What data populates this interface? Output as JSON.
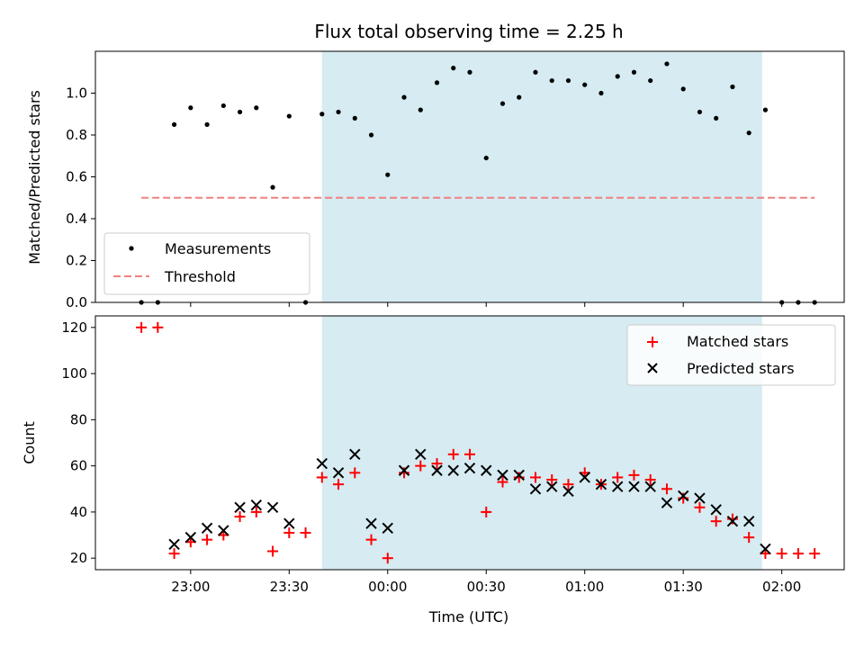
{
  "chart_data": [
    {
      "type": "scatter",
      "title": "Flux total observing time = 2.25 h",
      "xlabel": "",
      "ylabel": "Matched/Predicted stars",
      "ylim": [
        0,
        1.2
      ],
      "yticks": [
        "0.0",
        "0.2",
        "0.4",
        "0.6",
        "0.8",
        "1.0"
      ],
      "shaded_span": [
        "23:40",
        "01:54"
      ],
      "legend_position": "lower-left",
      "legend": [
        "Measurements",
        "Threshold"
      ],
      "threshold": {
        "value": 0.5,
        "x_start": "22:45",
        "x_end": "02:10",
        "color": "#f08080"
      },
      "series": [
        {
          "name": "Measurements",
          "color": "#000000",
          "x": [
            "22:45",
            "22:50",
            "22:55",
            "23:00",
            "23:05",
            "23:10",
            "23:15",
            "23:20",
            "23:25",
            "23:30",
            "23:35",
            "23:40",
            "23:45",
            "23:50",
            "23:55",
            "00:00",
            "00:05",
            "00:10",
            "00:15",
            "00:20",
            "00:25",
            "00:30",
            "00:35",
            "00:40",
            "00:45",
            "00:50",
            "00:55",
            "01:00",
            "01:05",
            "01:10",
            "01:15",
            "01:20",
            "01:25",
            "01:30",
            "01:35",
            "01:40",
            "01:45",
            "01:50",
            "01:55",
            "02:00",
            "02:05",
            "02:10"
          ],
          "y": [
            0,
            0,
            0.85,
            0.93,
            0.85,
            0.94,
            0.91,
            0.93,
            0.55,
            0.89,
            0,
            0.9,
            0.91,
            0.88,
            0.8,
            0.61,
            0.98,
            0.92,
            1.05,
            1.12,
            1.1,
            0.69,
            0.95,
            0.98,
            1.1,
            1.06,
            1.06,
            1.04,
            1.0,
            1.08,
            1.1,
            1.06,
            1.14,
            1.02,
            0.91,
            0.88,
            1.03,
            0.81,
            0.92,
            0,
            0,
            0
          ]
        }
      ]
    },
    {
      "type": "scatter",
      "title": "",
      "xlabel": "Time (UTC)",
      "ylabel": "Count",
      "ylim": [
        15,
        125
      ],
      "yticks": [
        "20",
        "40",
        "60",
        "80",
        "100",
        "120"
      ],
      "xticks": [
        "23:00",
        "23:30",
        "00:00",
        "00:30",
        "01:00",
        "01:30",
        "02:00"
      ],
      "shaded_span": [
        "23:40",
        "01:54"
      ],
      "legend_position": "upper-right",
      "legend": [
        "Matched stars",
        "Predicted stars"
      ],
      "series": [
        {
          "name": "Matched stars",
          "color": "#ff0000",
          "marker": "+",
          "x": [
            "22:45",
            "22:50",
            "22:55",
            "23:00",
            "23:05",
            "23:10",
            "23:15",
            "23:20",
            "23:25",
            "23:30",
            "23:35",
            "23:40",
            "23:45",
            "23:50",
            "23:55",
            "00:00",
            "00:05",
            "00:10",
            "00:15",
            "00:20",
            "00:25",
            "00:30",
            "00:35",
            "00:40",
            "00:45",
            "00:50",
            "00:55",
            "01:00",
            "01:05",
            "01:10",
            "01:15",
            "01:20",
            "01:25",
            "01:30",
            "01:35",
            "01:40",
            "01:45",
            "01:50",
            "01:55",
            "02:00",
            "02:05",
            "02:10"
          ],
          "y": [
            120,
            120,
            22,
            27,
            28,
            30,
            38,
            40,
            23,
            31,
            31,
            55,
            52,
            57,
            28,
            20,
            57,
            60,
            61,
            65,
            65,
            40,
            53,
            55,
            55,
            54,
            52,
            57,
            52,
            55,
            56,
            54,
            50,
            46,
            42,
            36,
            37,
            29,
            22,
            22,
            22,
            22
          ]
        },
        {
          "name": "Predicted stars",
          "color": "#000000",
          "marker": "x",
          "x": [
            "22:55",
            "23:00",
            "23:05",
            "23:10",
            "23:15",
            "23:20",
            "23:25",
            "23:30",
            "23:40",
            "23:45",
            "23:50",
            "23:55",
            "00:00",
            "00:05",
            "00:10",
            "00:15",
            "00:20",
            "00:25",
            "00:30",
            "00:35",
            "00:40",
            "00:45",
            "00:50",
            "00:55",
            "01:00",
            "01:05",
            "01:10",
            "01:15",
            "01:20",
            "01:25",
            "01:30",
            "01:35",
            "01:40",
            "01:45",
            "01:50",
            "01:55"
          ],
          "y": [
            26,
            29,
            33,
            32,
            42,
            43,
            42,
            35,
            61,
            57,
            65,
            35,
            33,
            58,
            65,
            58,
            58,
            59,
            58,
            56,
            56,
            50,
            51,
            49,
            55,
            52,
            51,
            51,
            51,
            44,
            47,
            46,
            41,
            36,
            36,
            24
          ]
        }
      ]
    }
  ]
}
